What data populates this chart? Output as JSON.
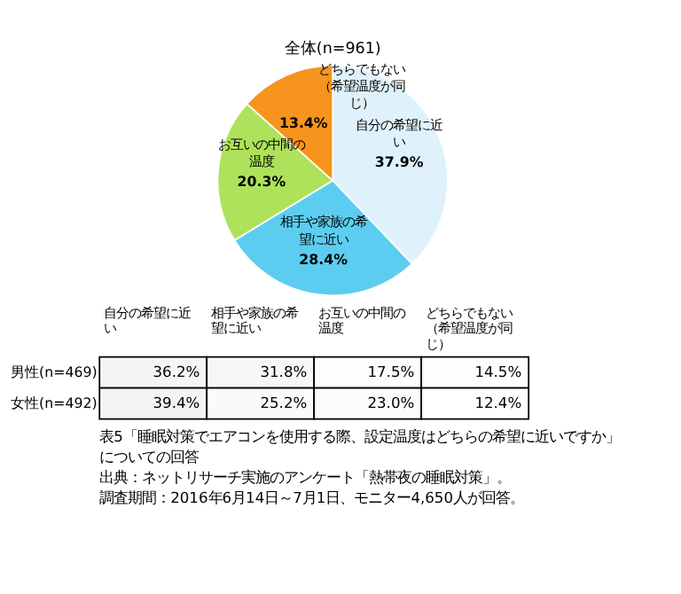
{
  "chart_data": [
    {
      "type": "pie",
      "title": "全体(n=961)",
      "categories": [
        "自分の希望に近い",
        "相手や家族の希望に近い",
        "お互いの中間の温度",
        "どちらでもない（希望温度が同じ）"
      ],
      "values": [
        37.9,
        28.4,
        20.3,
        13.4
      ],
      "colors": [
        "#dff2fb",
        "#5ccdf0",
        "#aee25a",
        "#f7941d"
      ],
      "value_labels": [
        "37.9%",
        "28.4%",
        "20.3%",
        "13.4%"
      ],
      "legend": false
    },
    {
      "type": "heatmap",
      "categories": [
        "自分の希望に近い",
        "相手や家族の希望に近い",
        "お互いの中間の温度",
        "どちらでもない（希望温度が同じ）"
      ],
      "y_categories": [
        "男性(n=469)",
        "女性(n=492)"
      ],
      "cells": [
        [
          36.2,
          31.8,
          17.5,
          14.5
        ],
        [
          39.4,
          25.2,
          23.0,
          12.4
        ]
      ],
      "data_labels": true,
      "cell_labels": [
        [
          "36.2%",
          "31.8%",
          "17.5%",
          "14.5%"
        ],
        [
          "39.4%",
          "25.2%",
          "23.0%",
          "12.4%"
        ]
      ],
      "annotations": [
        "表5「睡眠対策でエアコンを使用する際、設定温度はどちらの希望に近いですか」についての回答",
        "出典：ネットリサーチ実施のアンケート「熱帯夜の睡眠対策」。",
        "調査期間：2016年6月14日～7月1日、モニター4,650人が回答。"
      ]
    }
  ]
}
